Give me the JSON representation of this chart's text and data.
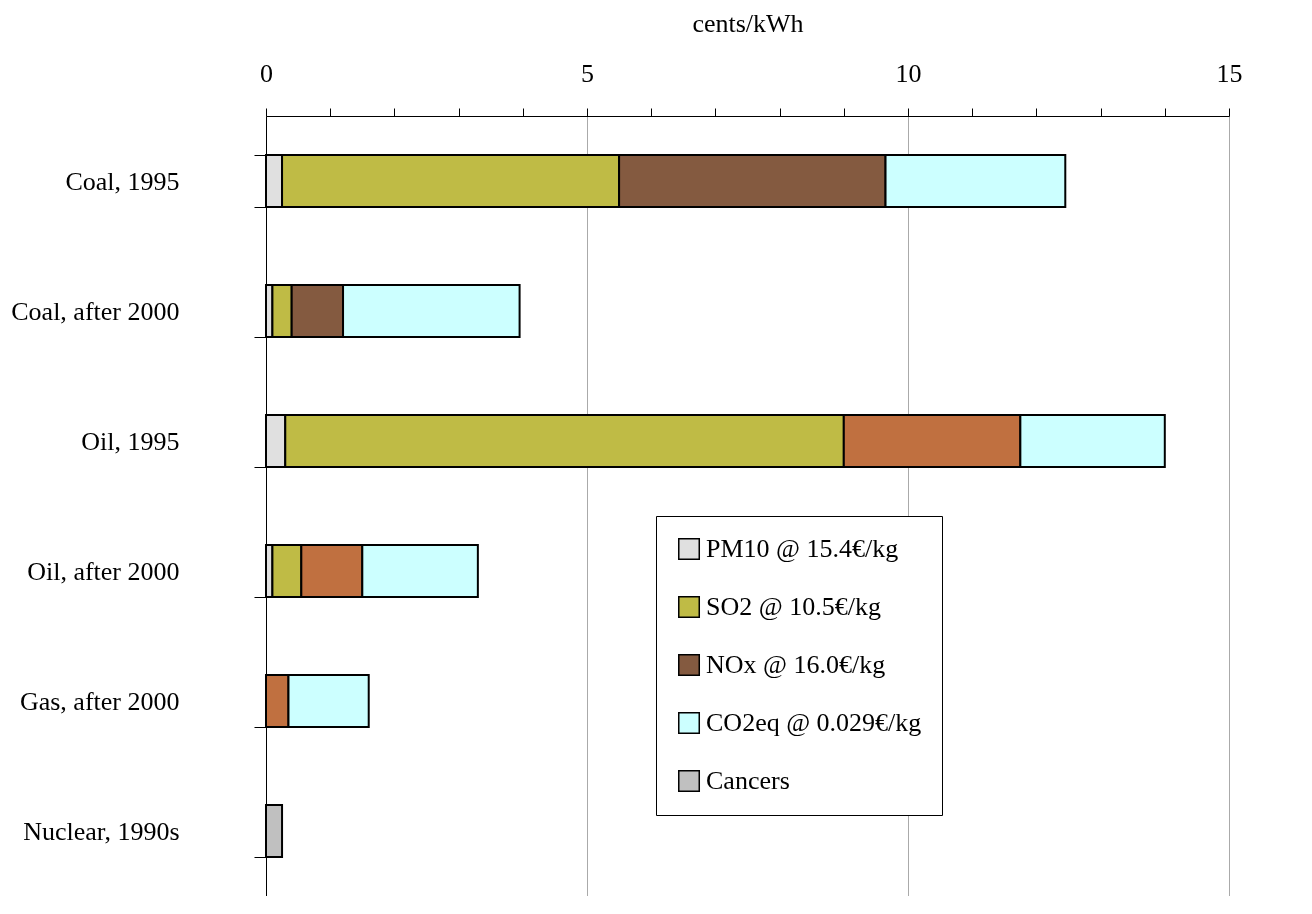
{
  "chart_data": {
    "type": "bar",
    "orientation": "horizontal",
    "stacked": true,
    "xlabel": "cents/kWh",
    "categories": [
      "Coal, 1995",
      "Coal, after 2000",
      "Oil, 1995",
      "Oil, after 2000",
      "Gas, after 2000",
      "Nuclear, 1990s"
    ],
    "series": [
      {
        "name": "PM10 @ 15.4€/kg",
        "color": "#e0e0e0",
        "values": [
          0.25,
          0.1,
          0.3,
          0.1,
          null,
          null
        ]
      },
      {
        "name": "SO2 @ 10.5€/kg",
        "color": "#bfbb45",
        "values": [
          5.25,
          0.3,
          8.7,
          0.45,
          null,
          null
        ]
      },
      {
        "name": "NOx @ 16.0€/kg",
        "color": "#845a40",
        "colors": [
          "#845a40",
          "#845a40",
          "#c07040",
          "#c07040",
          "#c07040",
          null
        ],
        "values": [
          4.15,
          0.8,
          2.75,
          0.95,
          0.35,
          null
        ]
      },
      {
        "name": "CO2eq @ 0.029€/kg",
        "color": "#ccffff",
        "values": [
          2.8,
          2.75,
          2.25,
          1.8,
          1.25,
          null
        ]
      },
      {
        "name": "Cancers",
        "color": "#c0c0c0",
        "values": [
          null,
          null,
          null,
          null,
          null,
          0.25
        ]
      }
    ],
    "xlim": [
      0,
      15
    ],
    "xticks": [
      0,
      {
        "value": 1,
        "label": null
      },
      {
        "value": 2,
        "label": null
      },
      {
        "value": 3,
        "label": null
      },
      {
        "value": 4,
        "label": null
      },
      5,
      {
        "value": 6,
        "label": null
      },
      {
        "value": 7,
        "label": null
      },
      {
        "value": 8,
        "label": null
      },
      {
        "value": 9,
        "label": null
      },
      10,
      {
        "value": 11,
        "label": null
      },
      {
        "value": 12,
        "label": null
      },
      {
        "value": 13,
        "label": null
      },
      {
        "value": 14,
        "label": null
      },
      15
    ],
    "grid": "x",
    "legend": "bottom right"
  }
}
